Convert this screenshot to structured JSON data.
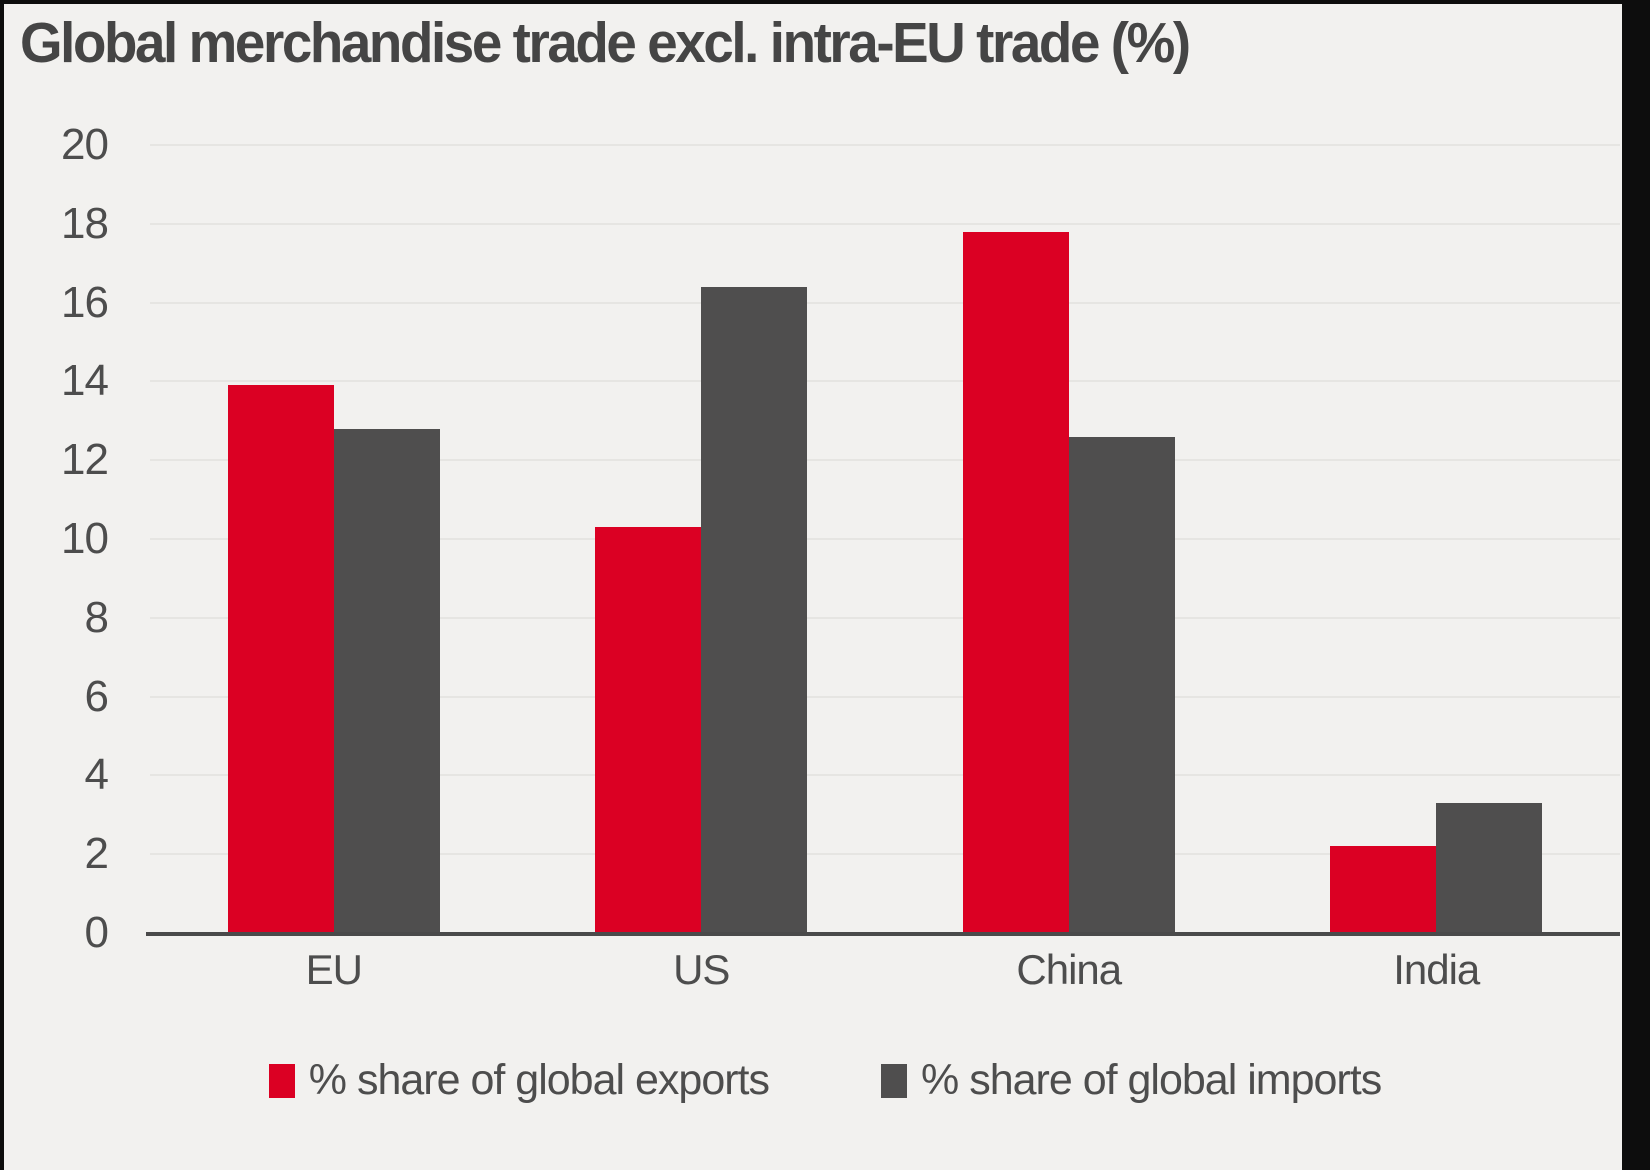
{
  "chart_data": {
    "type": "bar",
    "title": "Global merchandise trade excl. intra-EU trade (%)",
    "categories": [
      "EU",
      "US",
      "China",
      "India"
    ],
    "series": [
      {
        "name": "% share of global exports",
        "color": "#db0023",
        "values": [
          13.9,
          10.3,
          17.8,
          2.2
        ]
      },
      {
        "name": "% share of global imports",
        "color": "#4f4e4e",
        "values": [
          12.8,
          16.4,
          12.6,
          3.3
        ]
      }
    ],
    "xlabel": "",
    "ylabel": "",
    "ylim": [
      0,
      20
    ],
    "yticks": [
      0,
      2,
      4,
      6,
      8,
      10,
      12,
      14,
      16,
      18,
      20
    ],
    "grid": true,
    "legend_position": "bottom",
    "colors": {
      "background": "#f2f1ef",
      "grid": "#e6e5e2",
      "axis_line": "#4a4a4a",
      "tick_text": "#4d4d4d",
      "title_text": "#454545",
      "frame": "#0d0d0d"
    }
  }
}
